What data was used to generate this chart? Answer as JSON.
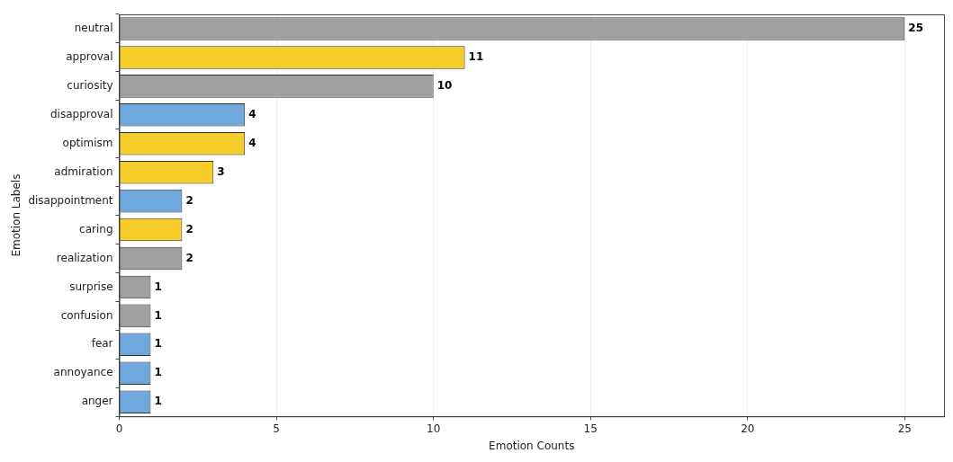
{
  "chart_data": {
    "type": "bar",
    "orientation": "horizontal",
    "xlabel": "Emotion Counts",
    "ylabel": "Emotion Labels",
    "categories": [
      "neutral",
      "approval",
      "curiosity",
      "disapproval",
      "optimism",
      "admiration",
      "disappointment",
      "caring",
      "realization",
      "surprise",
      "confusion",
      "fear",
      "annoyance",
      "anger"
    ],
    "values": [
      25,
      11,
      10,
      4,
      4,
      3,
      2,
      2,
      2,
      1,
      1,
      1,
      1,
      1
    ],
    "colors": [
      "#a0a0a0",
      "#f5cc2a",
      "#a0a0a0",
      "#6fa8dc",
      "#f5cc2a",
      "#f5cc2a",
      "#6fa8dc",
      "#f5cc2a",
      "#a0a0a0",
      "#a0a0a0",
      "#a0a0a0",
      "#6fa8dc",
      "#6fa8dc",
      "#6fa8dc"
    ],
    "xlim": [
      0,
      26.25
    ],
    "xticks": [
      0,
      5,
      10,
      15,
      20,
      25
    ],
    "grid": "x",
    "data_labels": true,
    "legend": false
  }
}
